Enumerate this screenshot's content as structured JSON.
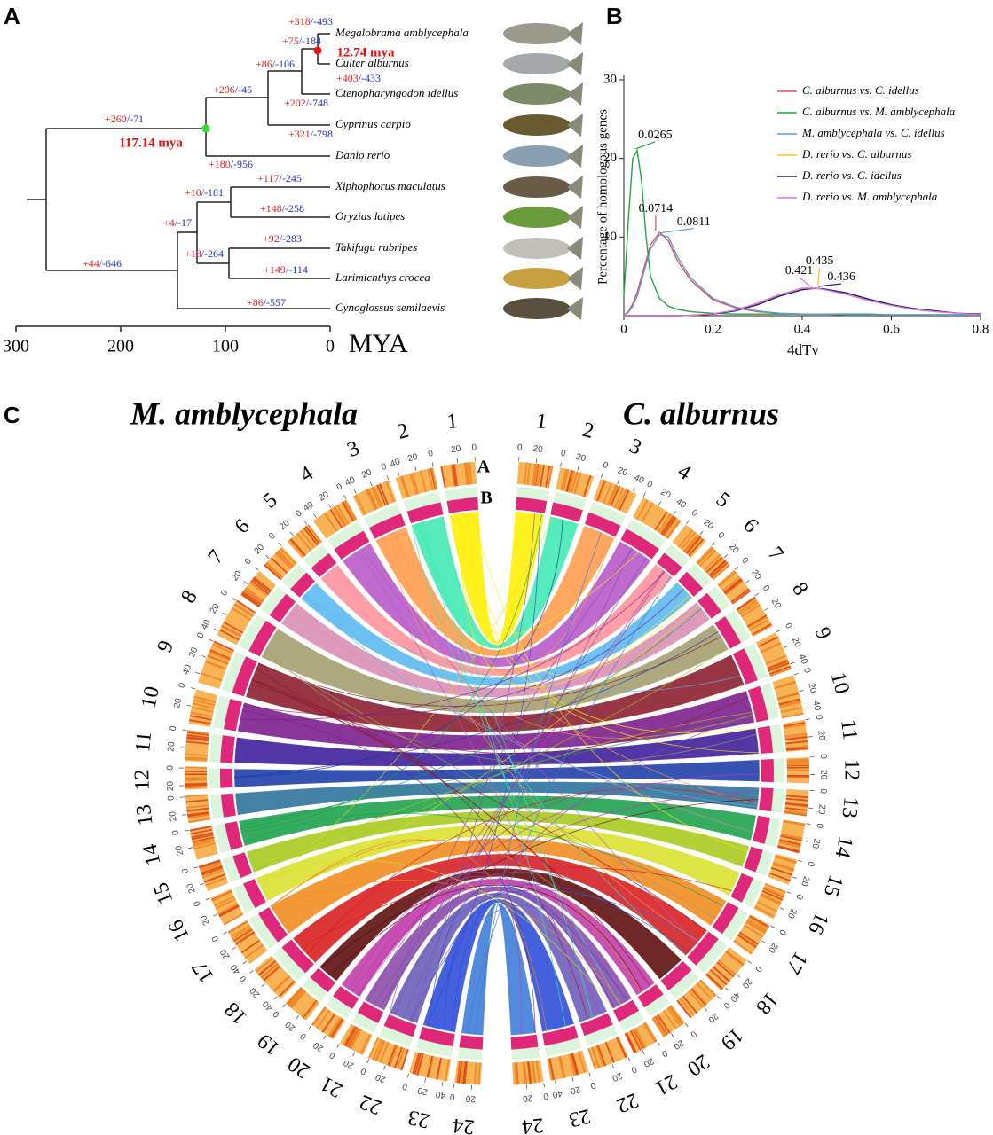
{
  "panel_labels": [
    "A",
    "B",
    "C"
  ],
  "panel_a": {
    "species": [
      "Megalobrama amblycephala",
      "Culter alburnus",
      "Ctenopharyngodon idellus",
      "Cyprinus carpio",
      "Danio rerio",
      "Xiphophorus maculatus",
      "Oryzias latipes",
      "Takifugu rubripes",
      "Larimichthys crocea",
      "Cynoglossus semilaevis"
    ],
    "branches": [
      {
        "gain": "+318",
        "loss": "/-493"
      },
      {
        "gain": "+75",
        "loss": "/-184"
      },
      {
        "gain": "+86",
        "loss": "/-106"
      },
      {
        "gain": "+403",
        "loss": "/-433"
      },
      {
        "gain": "+206",
        "loss": "/-45"
      },
      {
        "gain": "+202",
        "loss": "/-748"
      },
      {
        "gain": "+260",
        "loss": "/-71"
      },
      {
        "gain": "+321",
        "loss": "/-798"
      },
      {
        "gain": "+180",
        "loss": "/-956"
      },
      {
        "gain": "+117",
        "loss": "/-245"
      },
      {
        "gain": "+10",
        "loss": "/-181"
      },
      {
        "gain": "+148",
        "loss": "/-258"
      },
      {
        "gain": "+4",
        "loss": "/-17"
      },
      {
        "gain": "+92",
        "loss": "/-283"
      },
      {
        "gain": "+18",
        "loss": "/-264"
      },
      {
        "gain": "+149",
        "loss": "/-114"
      },
      {
        "gain": "+44",
        "loss": "/-646"
      },
      {
        "gain": "+86",
        "loss": "/-557"
      }
    ],
    "node_ages": [
      "117.14 mya",
      "12.74 mya"
    ],
    "node_colors": [
      "#33dd33",
      "#ee1111"
    ],
    "xlim": [
      300,
      0
    ],
    "xticks": [
      300,
      200,
      100,
      0
    ],
    "xlabel": "MYA"
  },
  "chart_data": {
    "type": "line",
    "ylabel": "Percentage of homologous genes",
    "xlabel": "4dTv",
    "xlim": [
      0,
      0.8
    ],
    "xticks": [
      0,
      0.2,
      0.4,
      0.6,
      0.8
    ],
    "ylim": [
      0,
      30
    ],
    "yticks": [
      10,
      20,
      30
    ],
    "x": [
      0,
      0.01,
      0.02,
      0.03,
      0.04,
      0.05,
      0.06,
      0.08,
      0.1,
      0.12,
      0.15,
      0.2,
      0.25,
      0.3,
      0.35,
      0.4,
      0.43,
      0.45,
      0.5,
      0.55,
      0.6,
      0.65,
      0.7,
      0.75,
      0.8
    ],
    "series": [
      {
        "name": "C. alburnus vs. C. idellus",
        "color": "#e8504a",
        "values": [
          0.1,
          0.5,
          1.5,
          3,
          5,
          7,
          9,
          10.6,
          9.5,
          7,
          4.5,
          2,
          1,
          0.5,
          0.3,
          0.2,
          0.2,
          0.2,
          0.1,
          0.1,
          0.1,
          0.1,
          0.1,
          0.1,
          0.1
        ]
      },
      {
        "name": "C. alburnus vs. M. amblycephala",
        "color": "#1fa83a",
        "values": [
          2.5,
          12,
          20,
          21,
          17,
          10,
          5,
          2.2,
          1.2,
          0.8,
          0.5,
          0.3,
          0.2,
          0.2,
          0.2,
          0.2,
          0.2,
          0.2,
          0.2,
          0.2,
          0.1,
          0.1,
          0.1,
          0.1,
          0.1
        ]
      },
      {
        "name": "M. amblycephala vs. C. idellus",
        "color": "#5a9ae0",
        "values": [
          0.1,
          0.4,
          1.2,
          2.5,
          4.5,
          6.5,
          8.5,
          10.3,
          10,
          7.5,
          4.8,
          2.2,
          1.1,
          0.6,
          0.3,
          0.2,
          0.2,
          0.2,
          0.1,
          0.1,
          0.1,
          0.1,
          0.1,
          0.1,
          0.1
        ]
      },
      {
        "name": "D. rerio vs. C. alburnus",
        "color": "#f5c518",
        "values": [
          0,
          0,
          0,
          0,
          0,
          0,
          0,
          0,
          0,
          0,
          0.05,
          0.2,
          0.6,
          1.5,
          2.6,
          3.4,
          3.5,
          3.4,
          2.8,
          2,
          1.3,
          0.8,
          0.5,
          0.3,
          0.1
        ]
      },
      {
        "name": "D. rerio vs. C. idellus",
        "color": "#1c2070",
        "values": [
          0,
          0,
          0,
          0,
          0,
          0,
          0,
          0,
          0,
          0,
          0.05,
          0.2,
          0.6,
          1.4,
          2.5,
          3.3,
          3.5,
          3.4,
          2.9,
          2.1,
          1.4,
          0.9,
          0.6,
          0.3,
          0.2
        ]
      },
      {
        "name": "D. rerio vs. M. amblycephala",
        "color": "#e070e0",
        "values": [
          0,
          0,
          0,
          0,
          0,
          0,
          0,
          0,
          0,
          0,
          0.05,
          0.25,
          0.7,
          1.6,
          2.7,
          3.5,
          3.5,
          3.3,
          2.7,
          1.9,
          1.3,
          0.8,
          0.5,
          0.3,
          0.1
        ]
      }
    ],
    "annotations": [
      {
        "x": 0.0265,
        "y": 21
      },
      {
        "x": 0.0714,
        "y": 10.6
      },
      {
        "x": 0.0811,
        "y": 10.3
      },
      {
        "x": 0.421,
        "y": 3.4
      },
      {
        "x": 0.435,
        "y": 3.5
      },
      {
        "x": 0.436,
        "y": 3.5
      }
    ]
  },
  "panel_c": {
    "ring_labels": [
      "A",
      "B"
    ],
    "link_colors": [
      "#ffee00",
      "#3de8b0",
      "#ff9a4a",
      "#b655c8",
      "#ff8f9a",
      "#59b8f0",
      "#d98cb0",
      "#a39c6c",
      "#8b1a2b",
      "#7a1a8a",
      "#3a1a9a",
      "#1a3aa8",
      "#2a6f9a",
      "#1aa04a",
      "#a8c81a",
      "#d8e02a",
      "#f08a1a",
      "#d81a1a",
      "#5a0a0a",
      "#c03aa8",
      "#8a4aa8",
      "#6a5ab8",
      "#2a4ad8",
      "#3a7ad8"
    ],
    "left": {
      "title": "M. amblycephala",
      "chromosomes": [
        {
          "label": 1,
          "length": 40,
          "ticks": [
            0,
            20
          ]
        },
        {
          "label": 2,
          "length": 45,
          "ticks": [
            0,
            20,
            40
          ]
        },
        {
          "label": 3,
          "length": 45,
          "ticks": [
            0,
            20,
            40
          ]
        },
        {
          "label": 4,
          "length": 45,
          "ticks": [
            0,
            20,
            40
          ]
        },
        {
          "label": 5,
          "length": 30,
          "ticks": [
            0,
            20
          ]
        },
        {
          "label": 6,
          "length": 30,
          "ticks": [
            0,
            20
          ]
        },
        {
          "label": 7,
          "length": 35,
          "ticks": [
            0,
            20
          ]
        },
        {
          "label": 8,
          "length": 45,
          "ticks": [
            0,
            20,
            40
          ]
        },
        {
          "label": 9,
          "length": 50,
          "ticks": [
            0,
            20,
            40
          ]
        },
        {
          "label": 10,
          "length": 40,
          "ticks": [
            0,
            20
          ]
        },
        {
          "label": 11,
          "length": 35,
          "ticks": [
            0,
            20
          ]
        },
        {
          "label": 12,
          "length": 25,
          "ticks": [
            0,
            20
          ]
        },
        {
          "label": 13,
          "length": 30,
          "ticks": [
            0,
            20
          ]
        },
        {
          "label": 14,
          "length": 35,
          "ticks": [
            0,
            20
          ]
        },
        {
          "label": 15,
          "length": 30,
          "ticks": [
            0,
            20
          ]
        },
        {
          "label": 16,
          "length": 35,
          "ticks": [
            0,
            20
          ]
        },
        {
          "label": 17,
          "length": 45,
          "ticks": [
            0,
            20,
            40
          ]
        },
        {
          "label": 18,
          "length": 45,
          "ticks": [
            0,
            20,
            40
          ]
        },
        {
          "label": 19,
          "length": 30,
          "ticks": [
            0,
            20
          ]
        },
        {
          "label": 20,
          "length": 30,
          "ticks": [
            0,
            20
          ]
        },
        {
          "label": 21,
          "length": 30,
          "ticks": [
            0,
            20
          ]
        },
        {
          "label": 22,
          "length": 40,
          "ticks": [
            0,
            20
          ]
        },
        {
          "label": 23,
          "length": 45,
          "ticks": [
            0,
            20,
            40
          ]
        },
        {
          "label": 24,
          "length": 30,
          "ticks": [
            0,
            20
          ]
        }
      ]
    },
    "right": {
      "title": "C. alburnus",
      "chromosomes": [
        {
          "label": 1,
          "length": 40,
          "ticks": [
            0,
            20
          ]
        },
        {
          "label": 2,
          "length": 40,
          "ticks": [
            0,
            20
          ]
        },
        {
          "label": 3,
          "length": 45,
          "ticks": [
            0,
            20,
            40
          ]
        },
        {
          "label": 4,
          "length": 50,
          "ticks": [
            0,
            20,
            40
          ]
        },
        {
          "label": 5,
          "length": 30,
          "ticks": [
            0,
            20
          ]
        },
        {
          "label": 6,
          "length": 30,
          "ticks": [
            0,
            20
          ]
        },
        {
          "label": 7,
          "length": 30,
          "ticks": [
            0,
            20
          ]
        },
        {
          "label": 8,
          "length": 40,
          "ticks": [
            0,
            20
          ]
        },
        {
          "label": 9,
          "length": 45,
          "ticks": [
            0,
            20,
            40
          ]
        },
        {
          "label": 10,
          "length": 45,
          "ticks": [
            0,
            20,
            40
          ]
        },
        {
          "label": 11,
          "length": 35,
          "ticks": [
            0,
            20
          ]
        },
        {
          "label": 12,
          "length": 30,
          "ticks": [
            0,
            20
          ]
        },
        {
          "label": 13,
          "length": 30,
          "ticks": [
            0,
            20
          ]
        },
        {
          "label": 14,
          "length": 35,
          "ticks": [
            0,
            20
          ]
        },
        {
          "label": 15,
          "length": 30,
          "ticks": [
            0,
            20
          ]
        },
        {
          "label": 16,
          "length": 35,
          "ticks": [
            0,
            20
          ]
        },
        {
          "label": 17,
          "length": 40,
          "ticks": [
            0,
            20
          ]
        },
        {
          "label": 18,
          "length": 45,
          "ticks": [
            0,
            20,
            40
          ]
        },
        {
          "label": 19,
          "length": 40,
          "ticks": [
            0,
            20
          ]
        },
        {
          "label": 20,
          "length": 30,
          "ticks": [
            0,
            20
          ]
        },
        {
          "label": 21,
          "length": 30,
          "ticks": [
            0,
            20
          ]
        },
        {
          "label": 22,
          "length": 40,
          "ticks": [
            0,
            20
          ]
        },
        {
          "label": 23,
          "length": 45,
          "ticks": [
            0,
            20,
            40
          ]
        },
        {
          "label": 24,
          "length": 35,
          "ticks": [
            0,
            20
          ]
        }
      ]
    }
  }
}
